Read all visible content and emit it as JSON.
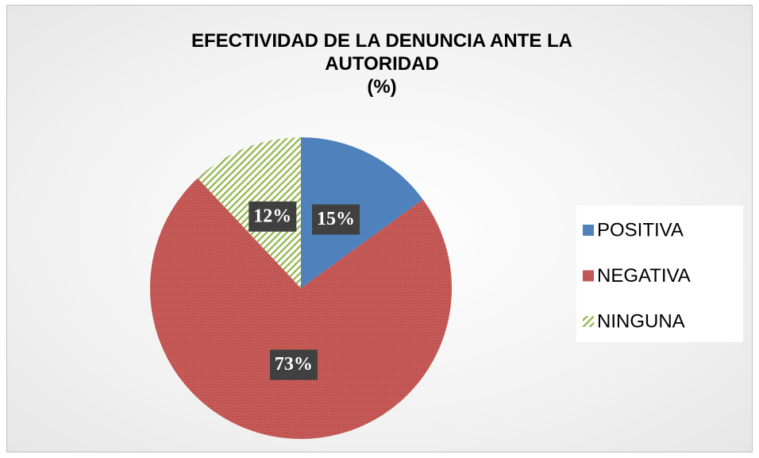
{
  "chart_data": {
    "type": "pie",
    "title": "EFECTIVIDAD DE LA DENUNCIA ANTE LA AUTORIDAD",
    "subtitle": "(%)",
    "categories": [
      "POSITIVA",
      "NEGATIVA",
      "NINGUNA"
    ],
    "values": [
      15,
      73,
      12
    ],
    "value_labels": [
      "15%",
      "73%",
      "12%"
    ],
    "colors": [
      "#4f81bd",
      "#c0504d",
      "#9bbb59"
    ],
    "legend": "right"
  }
}
